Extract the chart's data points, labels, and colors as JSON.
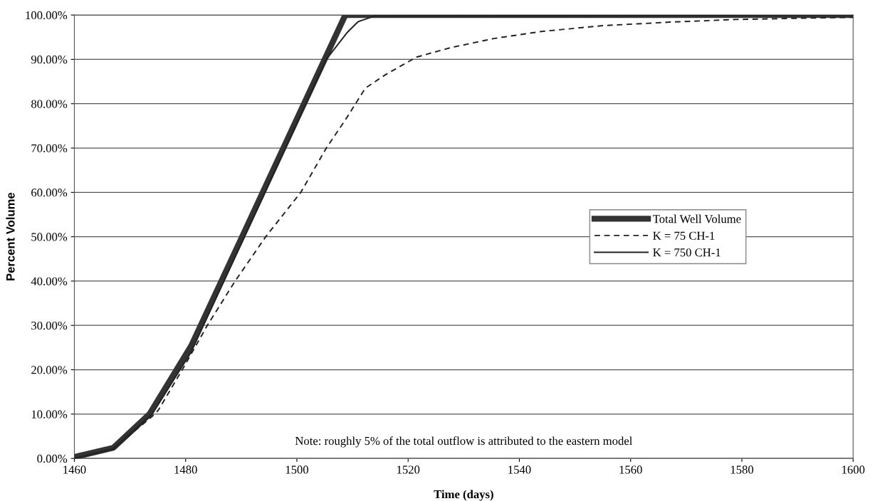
{
  "chart_data": {
    "type": "line",
    "xlabel": "Time (days)",
    "ylabel": "Percent Volume",
    "xlim": [
      1460,
      1600
    ],
    "xticks": [
      1460,
      1480,
      1500,
      1520,
      1540,
      1560,
      1580,
      1600
    ],
    "ylim": [
      0,
      100
    ],
    "yticks": [
      {
        "value": 0,
        "label": "0.00%"
      },
      {
        "value": 10,
        "label": "10.00%"
      },
      {
        "value": 20,
        "label": "20.00%"
      },
      {
        "value": 30,
        "label": "30.00%"
      },
      {
        "value": 40,
        "label": "40.00%"
      },
      {
        "value": 50,
        "label": "50.00%"
      },
      {
        "value": 60,
        "label": "60.00%"
      },
      {
        "value": 70,
        "label": "70.00%"
      },
      {
        "value": 80,
        "label": "80.00%"
      },
      {
        "value": 90,
        "label": "90.00%"
      },
      {
        "value": 100,
        "label": "100.00%"
      }
    ],
    "grid": "y",
    "legend": "center right",
    "marker": "none",
    "annotations": [
      "Note: roughly 5% of the total outflow is attributed to the eastern model"
    ],
    "series": [
      {
        "name": "Total Well Volume",
        "color": "#333333",
        "line_style": "solid",
        "x": [
          1460,
          1467,
          1473.5,
          1481,
          1490.3,
          1508.7,
          1600
        ],
        "values": [
          0.3,
          2.4,
          10,
          25.4,
          50.4,
          100,
          100
        ]
      },
      {
        "name": "K = 75 CH-1",
        "color": "#222222",
        "line_style": "dashed",
        "x": [
          1460,
          1467,
          1474,
          1475.1,
          1479.4,
          1483.9,
          1488.9,
          1494.4,
          1500.7,
          1505.3,
          1509,
          1512.3,
          1516,
          1521.5,
          1527.5,
          1535.4,
          1544,
          1555,
          1567,
          1579,
          1600
        ],
        "values": [
          0,
          2.2,
          9.5,
          10.9,
          20,
          30,
          40,
          50,
          60,
          70,
          76.9,
          83.5,
          86.6,
          90.5,
          92.6,
          94.7,
          96.3,
          97.6,
          98.4,
          99,
          99.5
        ]
      },
      {
        "name": "K = 750 CH-1",
        "color": "#222222",
        "line_style": "solid",
        "x": [
          1460,
          1467,
          1474,
          1481,
          1505.3,
          1509,
          1511,
          1514,
          1600
        ],
        "values": [
          0,
          2.2,
          10,
          24,
          90,
          96,
          98.5,
          99.8,
          100
        ]
      }
    ]
  }
}
